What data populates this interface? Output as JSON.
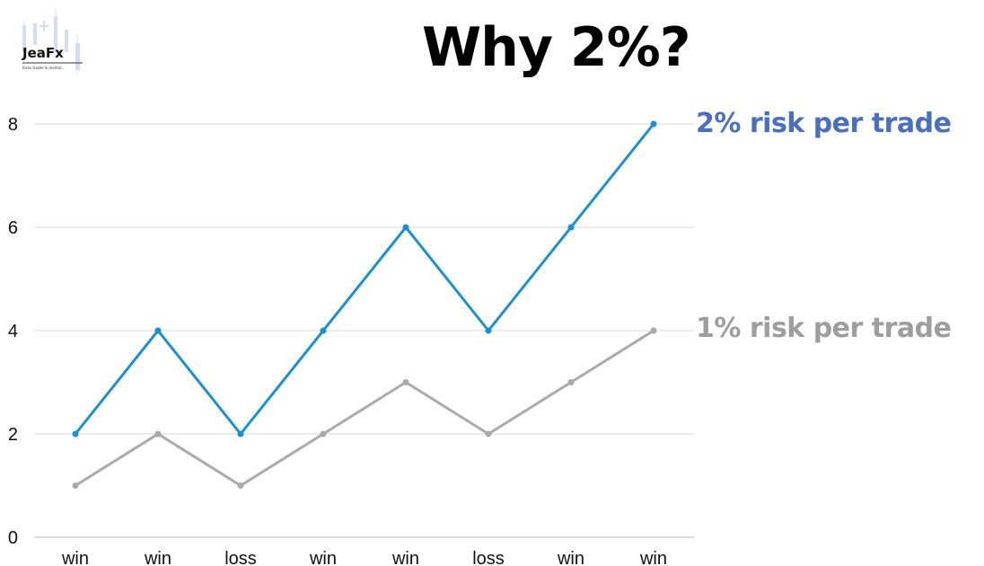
{
  "logo": {
    "name": "JeaFx",
    "tagline": "forex trader & mentor."
  },
  "title": "Why 2%?",
  "colors": {
    "series_2pct": "#1a8fd4",
    "series_1pct": "#aaaaaa",
    "label_2pct": "#4a6fc0",
    "label_1pct": "#9e9e9e",
    "grid": "#d9d9d9"
  },
  "chart_data": {
    "type": "line",
    "categories": [
      "win",
      "win",
      "loss",
      "win",
      "win",
      "loss",
      "win",
      "win"
    ],
    "series": [
      {
        "name": "2% risk per trade",
        "values": [
          2,
          4,
          2,
          4,
          6,
          4,
          6,
          8
        ]
      },
      {
        "name": "1% risk per trade",
        "values": [
          1,
          2,
          1,
          2,
          3,
          2,
          3,
          4
        ]
      }
    ],
    "yticks": [
      0,
      2,
      4,
      6,
      8
    ],
    "ylim": [
      0,
      8
    ],
    "grid": true,
    "legend": "right"
  }
}
